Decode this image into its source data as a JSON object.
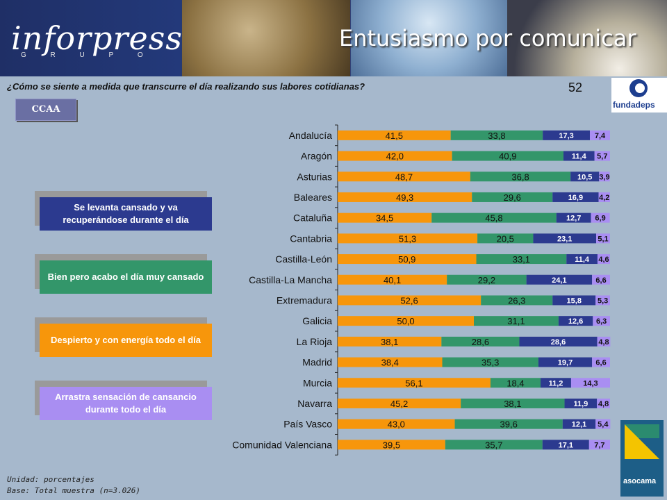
{
  "header": {
    "logo_text": "inforpress",
    "logo_sub": "G R U P O",
    "title": "Entusiasmo por comunicar"
  },
  "question": "¿Cómo se siente a medida que transcurre el día realizando sus labores cotidianas?",
  "page_number": "52",
  "ccaa_label": "CCAA",
  "brands": {
    "top": "fundadeps",
    "bottom": "asocama"
  },
  "legend": [
    {
      "label": "Se levanta cansado y va recuperándose durante el día",
      "color": "#2c3a8f"
    },
    {
      "label": "Bien pero acabo el día muy cansado",
      "color": "#33966a"
    },
    {
      "label": "Despierto y con energía todo el día",
      "color": "#f7960b"
    },
    {
      "label": "Arrastra sensación de cansancio durante todo el día",
      "color": "#a98ef2"
    }
  ],
  "footer": {
    "unit": "Unidad: porcentajes",
    "base": "Base: Total muestra (n=3.026)"
  },
  "chart_data": {
    "type": "bar",
    "orientation": "horizontal",
    "stacked": true,
    "categories": [
      "Andalucía",
      "Aragón",
      "Asturias",
      "Baleares",
      "Cataluña",
      "Cantabria",
      "Castilla-León",
      "Castilla-La Mancha",
      "Extremadura",
      "Galicia",
      "La Rioja",
      "Madrid",
      "Murcia",
      "Navarra",
      "País Vasco",
      "Comunidad Valenciana"
    ],
    "series": [
      {
        "name": "Despierto y con energía todo el día",
        "color": "#f7960b",
        "values": [
          41.5,
          42.0,
          48.7,
          49.3,
          34.5,
          51.3,
          50.9,
          40.1,
          52.6,
          50.0,
          38.1,
          38.4,
          56.1,
          45.2,
          43.0,
          39.5
        ]
      },
      {
        "name": "Bien pero acabo el día muy cansado",
        "color": "#33966a",
        "values": [
          33.8,
          40.9,
          36.8,
          29.6,
          45.8,
          20.5,
          33.1,
          29.2,
          26.3,
          31.1,
          28.6,
          35.3,
          18.4,
          38.1,
          39.6,
          35.7
        ]
      },
      {
        "name": "Se levanta cansado y va recuperándose durante el día",
        "color": "#2c3a8f",
        "values": [
          17.3,
          11.4,
          10.5,
          16.9,
          12.7,
          23.1,
          11.4,
          24.1,
          15.8,
          12.6,
          28.6,
          19.7,
          11.2,
          11.9,
          12.1,
          17.1
        ]
      },
      {
        "name": "Arrastra sensación de cansancio durante todo el día",
        "color": "#a98ef2",
        "values": [
          7.4,
          5.7,
          3.9,
          4.2,
          6.9,
          5.1,
          4.6,
          6.6,
          5.3,
          6.3,
          4.8,
          6.6,
          14.3,
          4.8,
          5.4,
          7.7
        ]
      }
    ],
    "xlim": [
      0,
      100
    ],
    "decimal_separator": ",",
    "grid": false
  }
}
